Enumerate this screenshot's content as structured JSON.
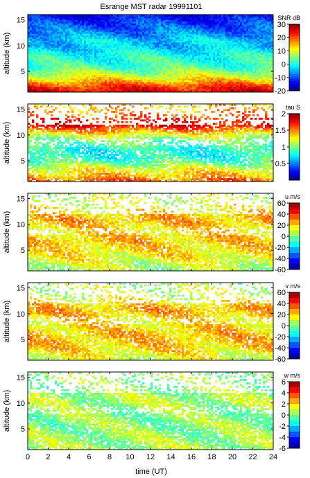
{
  "chart_data": {
    "type": "heatmap",
    "title": "Esrange MST radar 19991101",
    "xlabel": "time (UT)",
    "xlim": [
      0,
      24
    ],
    "xticks": [
      "0",
      "2",
      "4",
      "6",
      "8",
      "10",
      "12",
      "14",
      "16",
      "18",
      "20",
      "22",
      "24"
    ],
    "panels": [
      {
        "name": "snr",
        "ylabel": "altitude (km)",
        "ylim": [
          1,
          16
        ],
        "yticks": [
          "5",
          "10",
          "15"
        ],
        "colorbar_label": "SNR dB",
        "clim": [
          -20,
          30
        ],
        "colorbar_ticks": [
          "30",
          "20",
          "10",
          "0",
          "-10",
          "-20"
        ],
        "profile": {
          "altitudes_km": [
            1,
            2,
            3,
            4,
            5,
            6,
            7,
            8,
            9,
            10,
            11,
            12,
            13,
            14,
            15,
            16
          ],
          "typical_values": [
            25,
            22,
            16,
            10,
            6,
            2,
            1,
            0,
            -2,
            -4,
            -3,
            -6,
            -8,
            -10,
            -12,
            -14
          ]
        }
      },
      {
        "name": "tau",
        "ylabel": "altitude (km)",
        "ylim": [
          1,
          16
        ],
        "yticks": [
          "5",
          "10",
          "15"
        ],
        "colorbar_label": "tau S",
        "clim": [
          0,
          2
        ],
        "colorbar_ticks": [
          "2",
          "1.5",
          "1",
          "0.5"
        ],
        "profile": {
          "altitudes_km": [
            1,
            2,
            3,
            4,
            5,
            6,
            7,
            8,
            9,
            10,
            11,
            12,
            13,
            14,
            15,
            16
          ],
          "typical_values": [
            1.6,
            1.4,
            1.3,
            1.1,
            0.9,
            0.8,
            0.8,
            0.9,
            1.0,
            1.2,
            1.5,
            1.8,
            1.7,
            1.5,
            1.4,
            1.3
          ]
        }
      },
      {
        "name": "u",
        "ylabel": "altitude (km)",
        "ylim": [
          1,
          16
        ],
        "yticks": [
          "5",
          "10",
          "15"
        ],
        "colorbar_label": "u m/s",
        "clim": [
          -60,
          60
        ],
        "colorbar_ticks": [
          "60",
          "40",
          "20",
          "0",
          "-20",
          "-40",
          "-60"
        ],
        "profile": {
          "altitudes_km": [
            1,
            2,
            3,
            4,
            5,
            6,
            7,
            8,
            9,
            10,
            11,
            12,
            13,
            14,
            15,
            16
          ],
          "typical_values": [
            5,
            8,
            12,
            15,
            18,
            20,
            22,
            20,
            18,
            22,
            24,
            20,
            15,
            10,
            8,
            6
          ]
        }
      },
      {
        "name": "v",
        "ylabel": "altitude (km)",
        "ylim": [
          1,
          16
        ],
        "yticks": [
          "5",
          "10",
          "15"
        ],
        "colorbar_label": "v m/s",
        "clim": [
          -60,
          60
        ],
        "colorbar_ticks": [
          "60",
          "40",
          "20",
          "0",
          "-20",
          "-40",
          "-60"
        ],
        "profile": {
          "altitudes_km": [
            1,
            2,
            3,
            4,
            5,
            6,
            7,
            8,
            9,
            10,
            11,
            12,
            13,
            14,
            15,
            16
          ],
          "typical_values": [
            10,
            14,
            18,
            20,
            22,
            22,
            20,
            18,
            18,
            22,
            24,
            18,
            12,
            8,
            6,
            4
          ]
        }
      },
      {
        "name": "w",
        "ylabel": "altitude (km)",
        "ylim": [
          1,
          16
        ],
        "yticks": [
          "5",
          "10",
          "15"
        ],
        "colorbar_label": "w m/s",
        "clim": [
          -6,
          6
        ],
        "colorbar_ticks": [
          "6",
          "4",
          "2",
          "0",
          "-2",
          "-4",
          "-6"
        ],
        "profile": {
          "altitudes_km": [
            1,
            2,
            3,
            4,
            5,
            6,
            7,
            8,
            9,
            10,
            11,
            12,
            13,
            14,
            15,
            16
          ],
          "typical_values": [
            0.5,
            0.5,
            0.3,
            0.3,
            0.2,
            0.2,
            0.2,
            0.2,
            0.3,
            0.5,
            0.5,
            0.3,
            0.2,
            0.2,
            0.2,
            0.2
          ]
        }
      }
    ]
  }
}
